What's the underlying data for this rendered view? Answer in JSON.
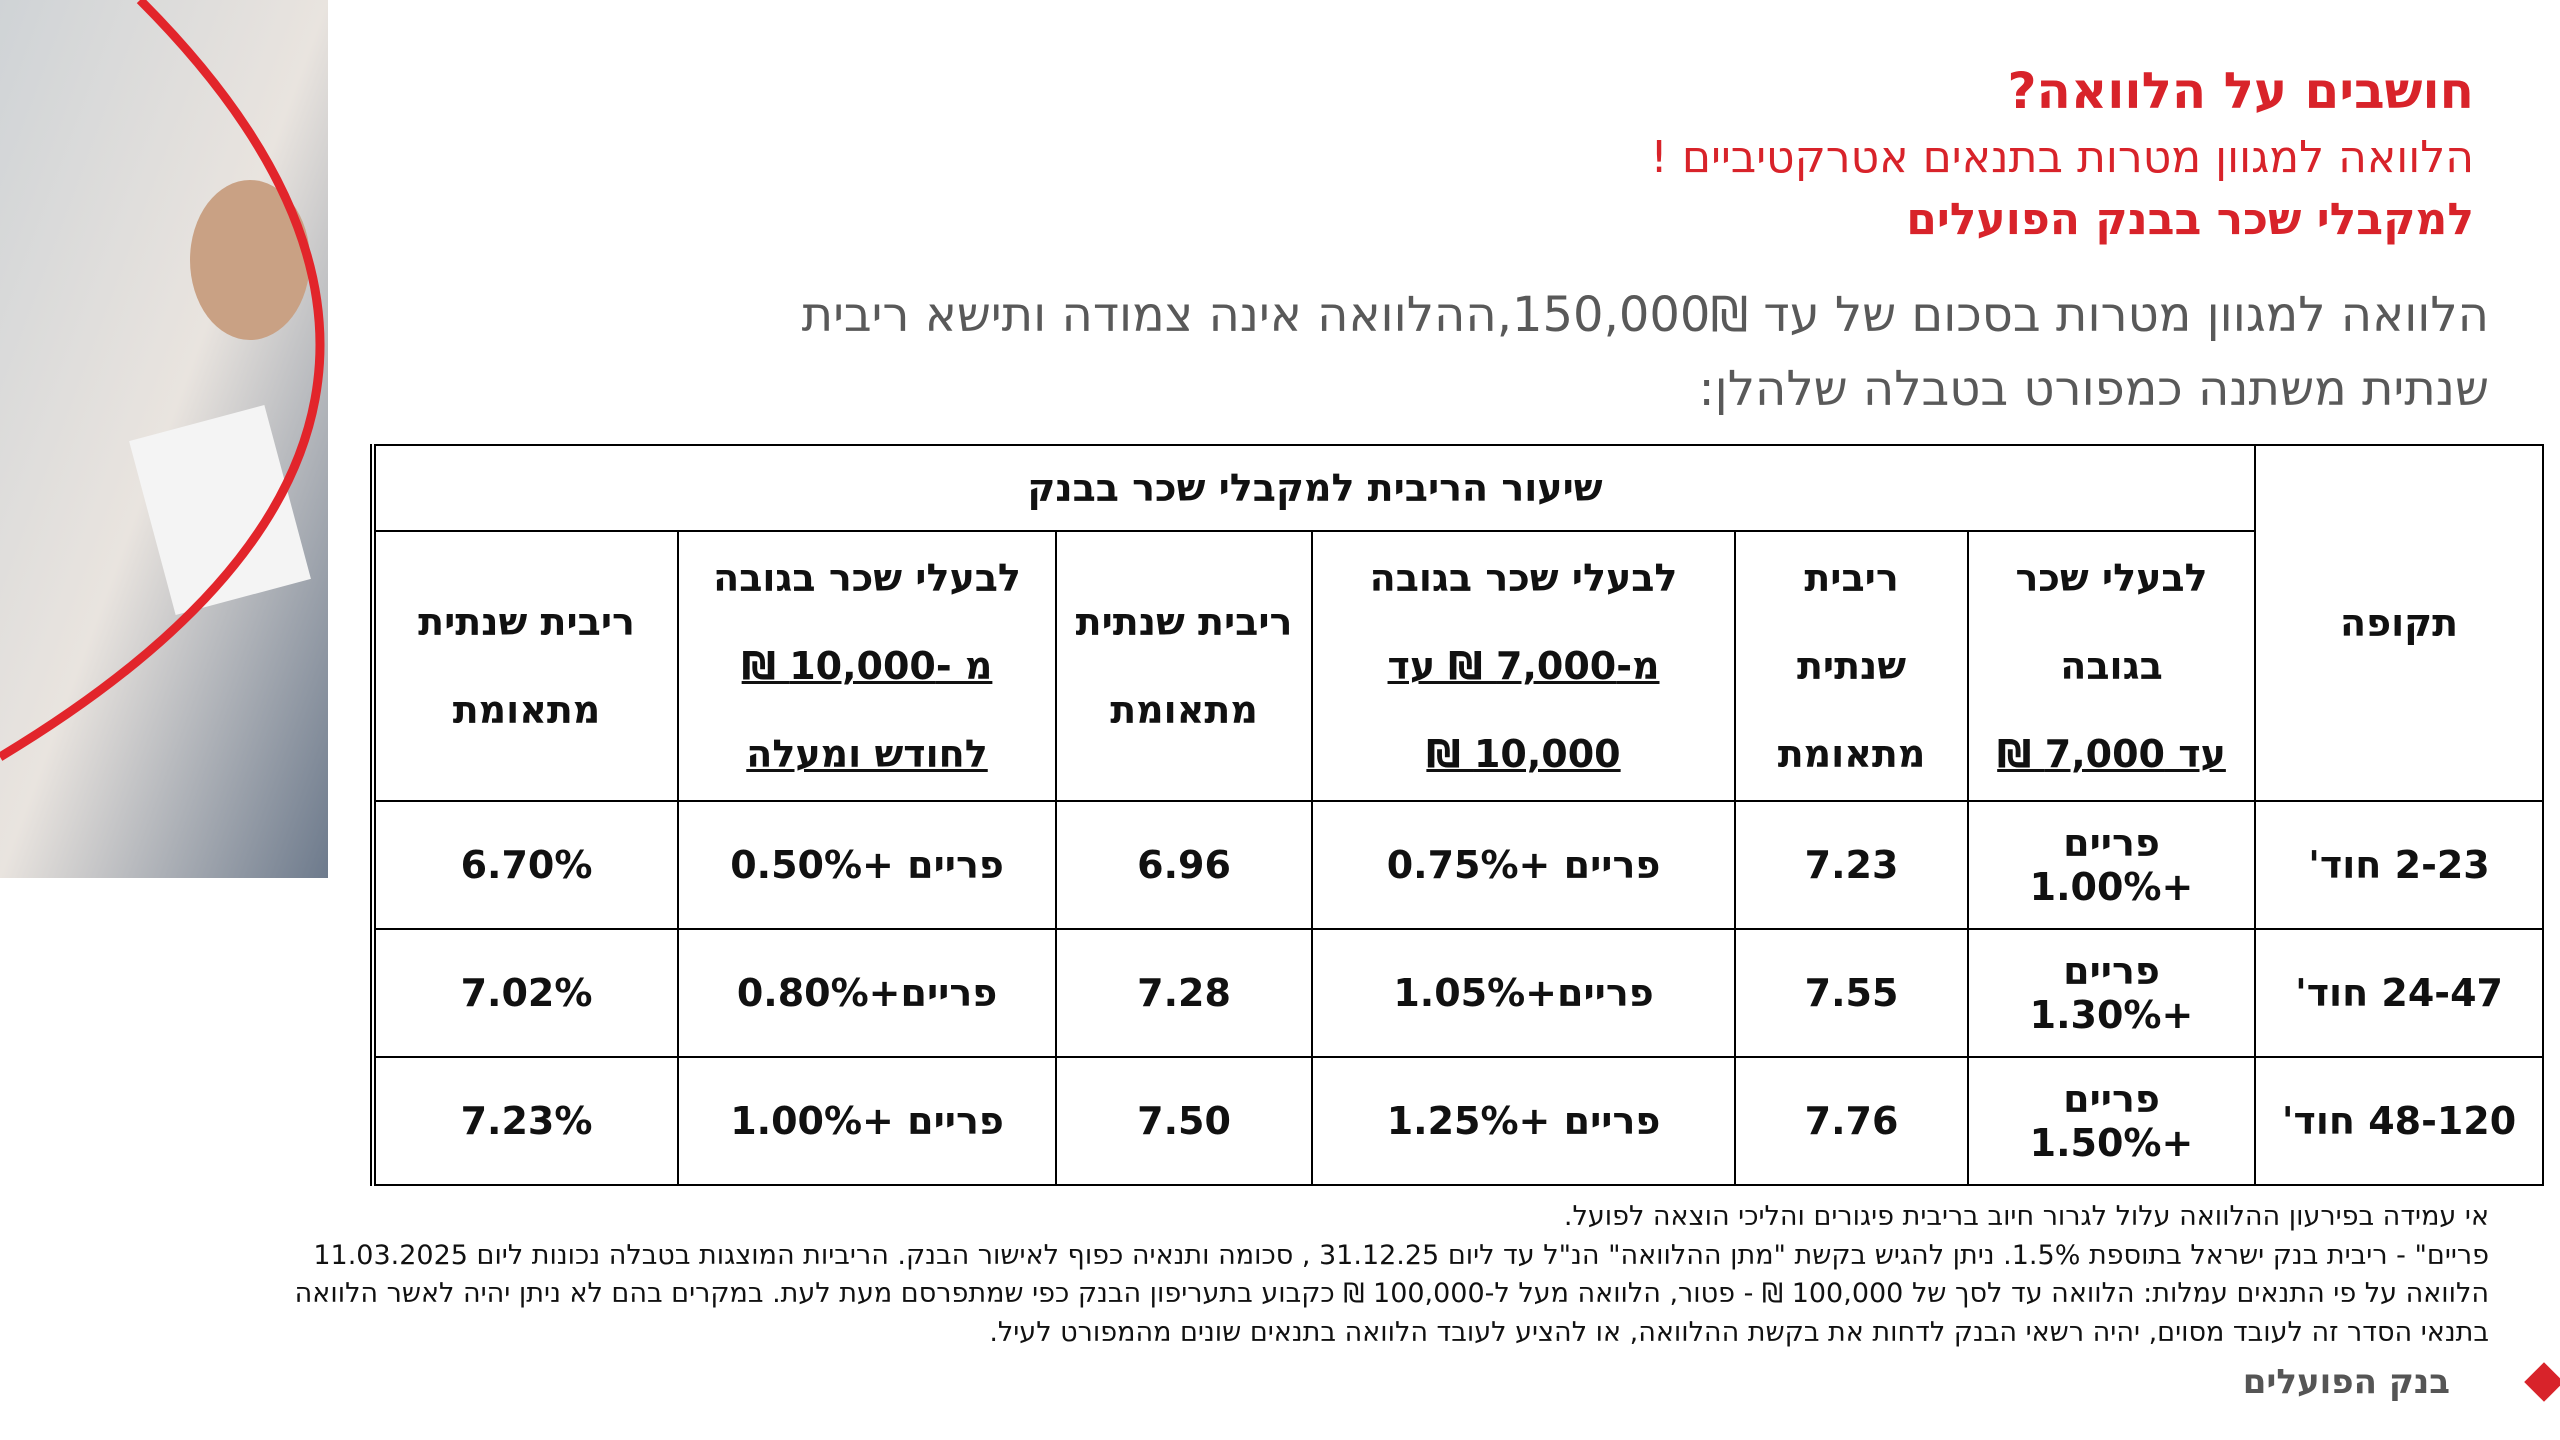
{
  "header": {
    "title": "חושבים על הלוואה?",
    "subtitle": "הלוואה למגוון מטרות בתנאים אטרקטיביים !",
    "audience": "למקבלי שכר בבנק הפועלים"
  },
  "intro": {
    "lines": [
      "הלוואה למגוון מטרות בסכום של  עד 150,000₪,ההלוואה אינה צמודה ותישא ריבית",
      "שנתית משתנה כמפורט בטבלה שלהלן:"
    ]
  },
  "table": {
    "period_header": "תקופה",
    "group_header": "שיעור הריבית למקבלי שכר בבנק",
    "columns": [
      {
        "lead": "לבעלי שכר בגובה",
        "underlined": "עד 7,000 ₪"
      },
      {
        "lead": "ריבית שנתית מתאומת"
      },
      {
        "lead": "לבעלי שכר בגובה",
        "underlined": "מ-7,000 ₪ עד 10,000 ₪"
      },
      {
        "lead": "ריבית שנתית מתאומת"
      },
      {
        "lead": "לבעלי שכר בגובה",
        "underlined": "מ -10,000 ₪ לחודש ומעלה"
      },
      {
        "lead": "ריבית שנתית מתאומת"
      }
    ],
    "rows": [
      [
        "2-23 חוד'",
        "פריים +1.00%",
        "7.23",
        "פריים +0.75%",
        "6.96",
        "פריים +0.50%",
        "6.70%"
      ],
      [
        "24-47 חוד'",
        "פריים +1.30%",
        "7.55",
        "פריים+1.05%",
        "7.28",
        "פריים+0.80%",
        "7.02%"
      ],
      [
        "48-120 חוד'",
        "פריים +1.50%",
        "7.76",
        "פריים +1.25%",
        "7.50",
        "פריים +1.00%",
        "7.23%"
      ]
    ]
  },
  "footnotes": [
    "אי עמידה בפירעון ההלוואה עלול לגרור חיוב בריבית פיגורים והליכי הוצאה לפועל.",
    "פריים\" -  ריבית בנק ישראל בתוספת 1.5%. ניתן להגיש בקשת \"מתן ההלוואה\" הנ\"ל עד ליום 31.12.25 , סכומה ותנאיה כפוף לאישור הבנק.  הריביות המוצגות בטבלה נכונות ליום 11.03.2025",
    "הלוואה על פי התנאים עמלות: הלוואה עד לסך של 100,000 ₪ - פטור, הלוואה מעל ל-100,000 ₪ כקבוע בתעריפון הבנק כפי שמתפרסם מעת לעת. במקרים בהם לא ניתן יהיה לאשר הלוואה",
    "בתנאי הסדר זה לעובד מסוים,  יהיה רשאי הבנק לדחות את בקשת ההלוואה, או להציע לעובד הלוואה בתנאים שונים מהמפורט לעיל."
  ],
  "logo": {
    "text": "בנק הפועלים"
  }
}
